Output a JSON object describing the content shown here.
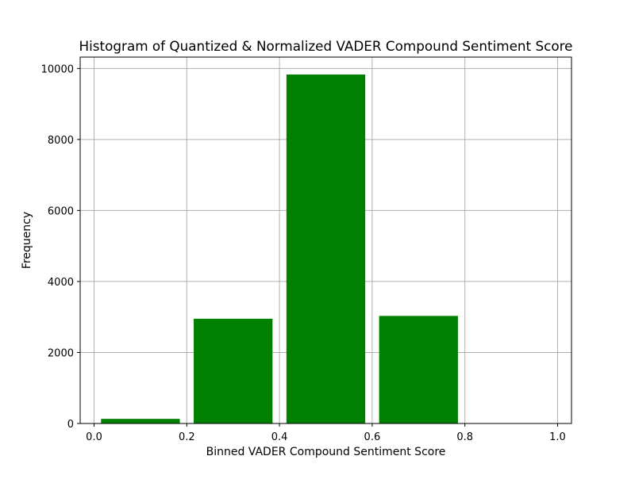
{
  "chart_data": {
    "type": "bar",
    "title": "Histogram of Quantized & Normalized VADER Compound Sentiment Score",
    "xlabel": "Binned VADER Compound Sentiment Score",
    "ylabel": "Frequency",
    "bins": [
      {
        "start": 0.0,
        "end": 0.2,
        "value": 130
      },
      {
        "start": 0.2,
        "end": 0.4,
        "value": 2950
      },
      {
        "start": 0.4,
        "end": 0.6,
        "value": 9830
      },
      {
        "start": 0.6,
        "end": 0.8,
        "value": 3030
      },
      {
        "start": 0.8,
        "end": 1.0,
        "value": 0
      }
    ],
    "rwidth": 0.85,
    "xlim": [
      -0.03,
      1.03
    ],
    "ylim": [
      0,
      10320
    ],
    "xticks": [
      0.0,
      0.2,
      0.4,
      0.6,
      0.8,
      1.0
    ],
    "xtick_labels": [
      "0.0",
      "0.2",
      "0.4",
      "0.6",
      "0.8",
      "1.0"
    ],
    "yticks": [
      0,
      2000,
      4000,
      6000,
      8000,
      10000
    ],
    "ytick_labels": [
      "0",
      "2000",
      "4000",
      "6000",
      "8000",
      "10000"
    ],
    "grid": true,
    "legend": "none",
    "colors": {
      "bar": "#008000",
      "grid": "#b0b0b0",
      "axis": "#000000"
    }
  }
}
